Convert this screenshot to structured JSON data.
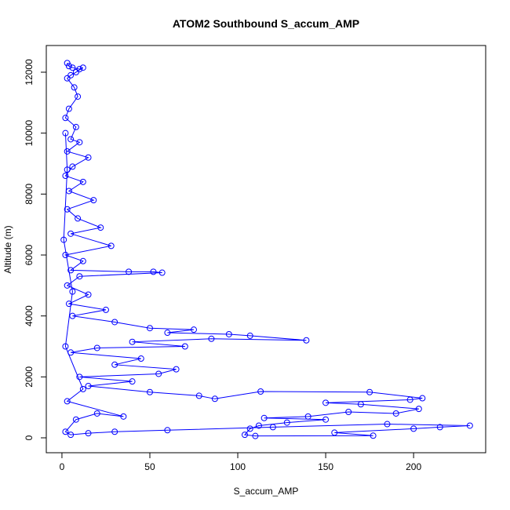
{
  "chart_data": {
    "type": "line",
    "title": "ATOM2 Southbound S_accum_AMP",
    "x_label": "S_accum_AMP",
    "y_label": "Altitude (m)",
    "color": "#0000ff",
    "markers": true,
    "xlim": [
      -8.9,
      241
    ],
    "ylim": [
      -489,
      12876
    ],
    "xticks": [
      0,
      50,
      100,
      150,
      200
    ],
    "yticks": [
      0,
      2000,
      4000,
      6000,
      8000,
      10000,
      12000
    ],
    "x": [
      3,
      4,
      6,
      10,
      12,
      8,
      5,
      3,
      7,
      9,
      4,
      2,
      8,
      5,
      10,
      3,
      15,
      6,
      2,
      12,
      4,
      18,
      3,
      9,
      22,
      5,
      28,
      2,
      12,
      5,
      38,
      52,
      57,
      10,
      3,
      15,
      4,
      25,
      6,
      30,
      50,
      75,
      60,
      95,
      107,
      139,
      85,
      40,
      70,
      20,
      5,
      45,
      30,
      65,
      55,
      10,
      40,
      15,
      50,
      78,
      87,
      113,
      175,
      205,
      198,
      150,
      170,
      203,
      190,
      163,
      140,
      115,
      150,
      128,
      112,
      107,
      104,
      110,
      177,
      155,
      200,
      215,
      232,
      185,
      120,
      60,
      30,
      15,
      5,
      2,
      8,
      20,
      35,
      3,
      12,
      2,
      6,
      1,
      3,
      2
    ],
    "values": [
      12300,
      12200,
      12150,
      12100,
      12150,
      12000,
      11900,
      11800,
      11500,
      11200,
      10800,
      10500,
      10200,
      9800,
      9700,
      9400,
      9200,
      8900,
      8600,
      8400,
      8100,
      7800,
      7500,
      7200,
      6900,
      6700,
      6300,
      6000,
      5800,
      5500,
      5450,
      5450,
      5420,
      5300,
      5000,
      4700,
      4400,
      4200,
      4000,
      3800,
      3600,
      3550,
      3450,
      3400,
      3350,
      3200,
      3250,
      3150,
      3000,
      2950,
      2800,
      2600,
      2400,
      2250,
      2100,
      2000,
      1850,
      1700,
      1500,
      1380,
      1280,
      1520,
      1500,
      1300,
      1250,
      1150,
      1100,
      950,
      800,
      850,
      700,
      650,
      600,
      500,
      400,
      300,
      100,
      60,
      70,
      170,
      300,
      350,
      400,
      450,
      350,
      250,
      200,
      150,
      100,
      200,
      600,
      800,
      700,
      1200,
      1600,
      3000,
      4800,
      6500,
      8800,
      10000
    ]
  }
}
